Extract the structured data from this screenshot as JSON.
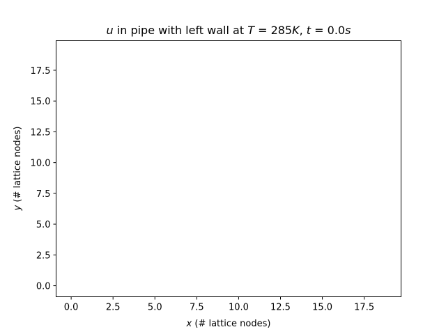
{
  "chart_data": {
    "type": "heatmap",
    "title": {
      "var": "u",
      "text1": " in pipe with left wall at ",
      "var2": "T",
      "text2": " = 285",
      "unit1": "K",
      "text3": ", ",
      "var3": "t",
      "text4": " = 0.0",
      "unit2": "s"
    },
    "xlabel": {
      "var": "x",
      "text": " (# lattice nodes)"
    },
    "ylabel": {
      "var": "y",
      "text": " (# lattice nodes)"
    },
    "xlim": [
      -0.9,
      19.7
    ],
    "ylim": [
      -0.9,
      19.9
    ],
    "xticks": [
      {
        "value": 0.0,
        "label": "0.0"
      },
      {
        "value": 2.5,
        "label": "2.5"
      },
      {
        "value": 5.0,
        "label": "5.0"
      },
      {
        "value": 7.5,
        "label": "7.5"
      },
      {
        "value": 10.0,
        "label": "10.0"
      },
      {
        "value": 12.5,
        "label": "12.5"
      },
      {
        "value": 15.0,
        "label": "15.0"
      },
      {
        "value": 17.5,
        "label": "17.5"
      }
    ],
    "yticks": [
      {
        "value": 0.0,
        "label": "0.0"
      },
      {
        "value": 2.5,
        "label": "2.5"
      },
      {
        "value": 5.0,
        "label": "5.0"
      },
      {
        "value": 7.5,
        "label": "7.5"
      },
      {
        "value": 10.0,
        "label": "10.0"
      },
      {
        "value": 12.5,
        "label": "12.5"
      },
      {
        "value": 15.0,
        "label": "15.0"
      },
      {
        "value": 17.5,
        "label": "17.5"
      }
    ],
    "grid": false,
    "values": []
  }
}
